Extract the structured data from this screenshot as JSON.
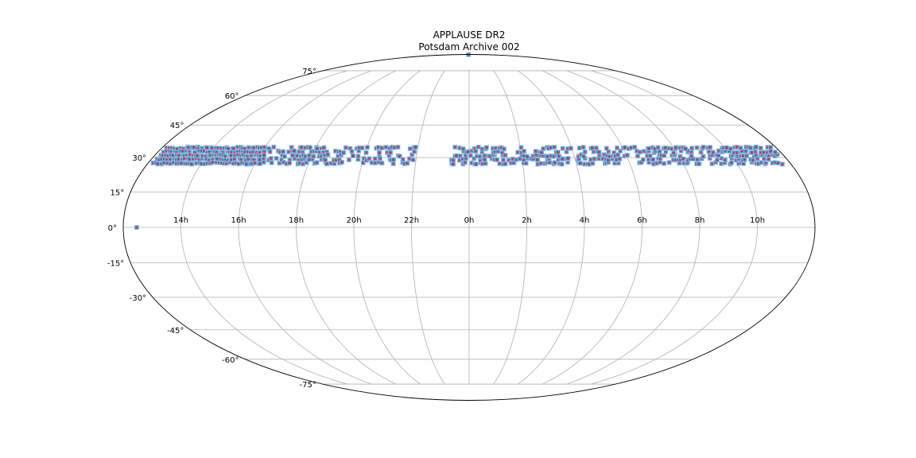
{
  "chart_data": {
    "type": "scatter",
    "projection": "mollweide",
    "title": "APPLAUSE DR2",
    "subtitle": "Potsdam Archive 002",
    "grid": true,
    "x_ticks": [
      "14h",
      "16h",
      "18h",
      "20h",
      "22h",
      "0h",
      "2h",
      "4h",
      "6h",
      "8h",
      "10h"
    ],
    "y_ticks": [
      "75°",
      "60°",
      "45°",
      "30°",
      "15°",
      "0°",
      "-15°",
      "-30°",
      "-45°",
      "-60°",
      "-75°"
    ],
    "ra_tick_values_deg": [
      -150,
      -120,
      -90,
      -60,
      -30,
      0,
      30,
      60,
      90,
      120,
      150
    ],
    "dec_tick_values_deg": [
      75,
      60,
      45,
      30,
      15,
      0,
      -15,
      -30,
      -45,
      -60,
      -75
    ],
    "dec_band_deg": [
      27.5,
      35.5
    ],
    "band_segments_ra_deg": [
      [
        -177,
        -158,
        1.0
      ],
      [
        -158,
        -117,
        1.0
      ],
      [
        -117,
        -101,
        0.55
      ],
      [
        -101,
        -84,
        0.7
      ],
      [
        -84,
        -66,
        0.55
      ],
      [
        -66,
        -44,
        0.45
      ],
      [
        -44,
        -30,
        0.4
      ],
      [
        -10,
        14,
        0.6
      ],
      [
        14,
        39,
        0.55
      ],
      [
        39,
        58,
        0.6
      ],
      [
        58,
        84,
        0.55
      ],
      [
        84,
        104,
        0.5
      ],
      [
        104,
        127,
        0.6
      ],
      [
        127,
        151,
        0.55
      ],
      [
        151,
        178,
        0.8
      ]
    ],
    "outliers_deg": [
      [
        -173,
        0
      ],
      [
        -7.5,
        90
      ]
    ],
    "colors": {
      "footprint_fill": "#4a6ea9",
      "footprint_edge": "#9ec6e8",
      "center_marker": "#e0202a",
      "grid": "#b0b0b0",
      "outline": "#000000"
    }
  }
}
